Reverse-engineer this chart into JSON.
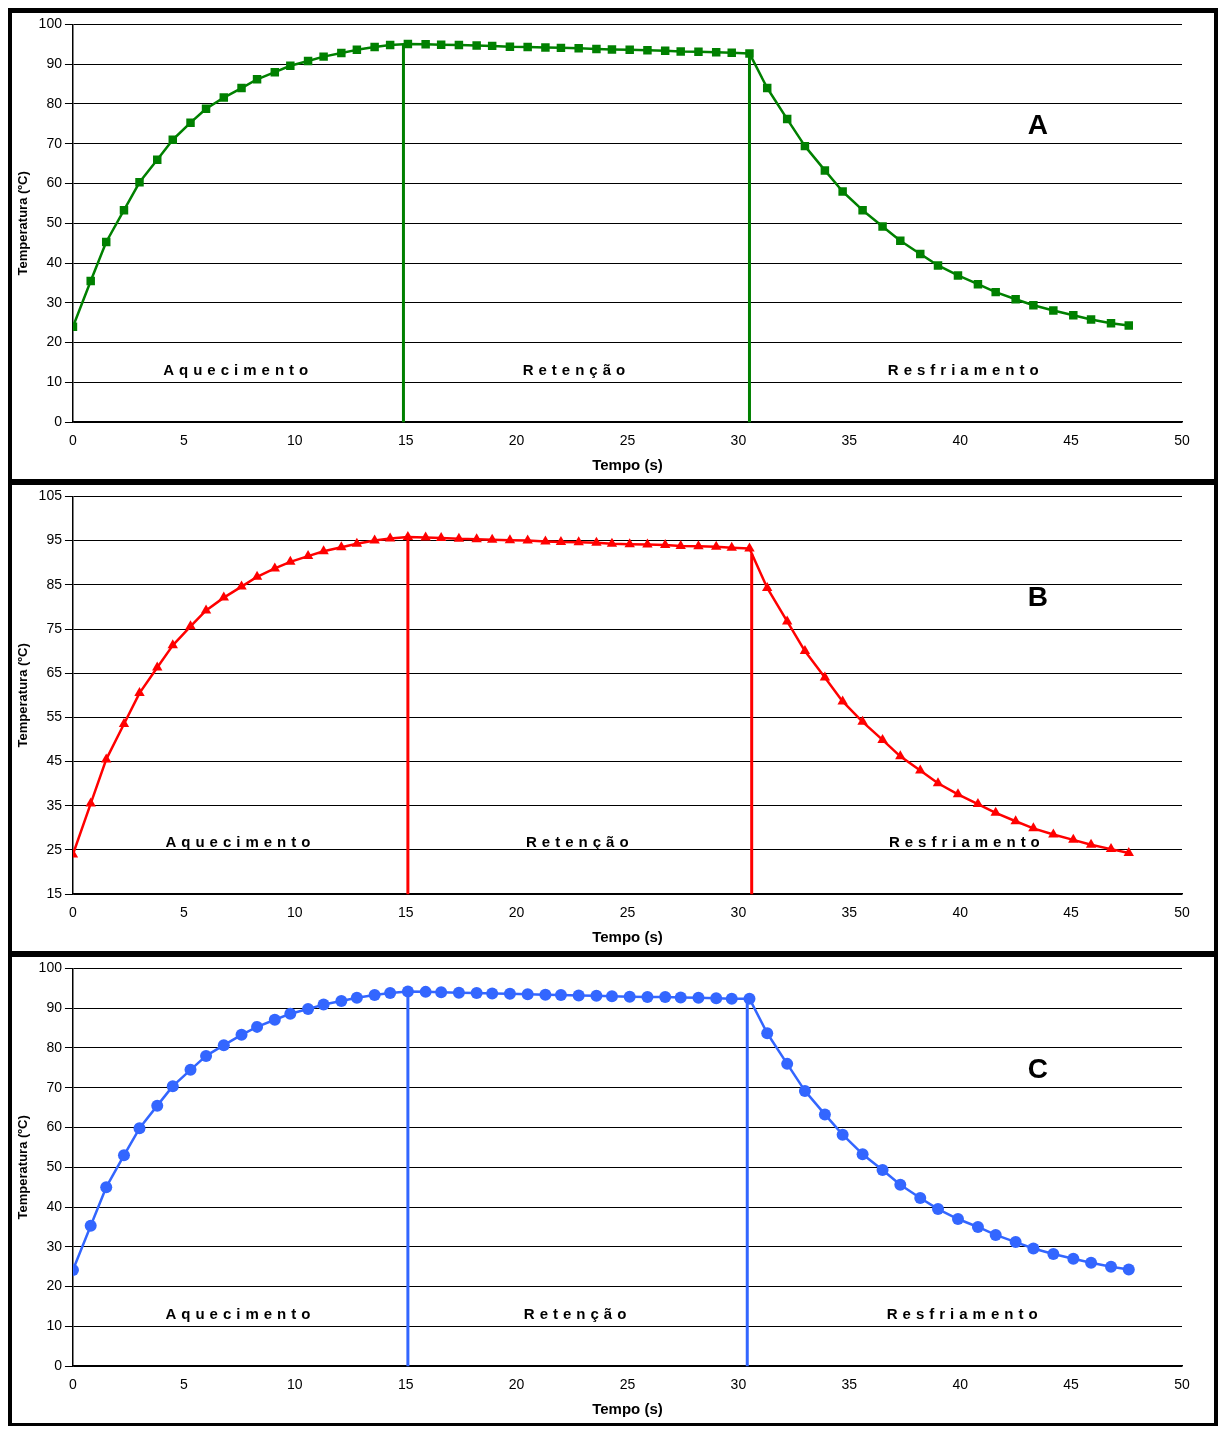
{
  "chart_data": [
    {
      "type": "line",
      "xlabel": "Tempo (s)",
      "ylabel": "Temperatura (ºC)",
      "xlim": [
        0,
        50
      ],
      "xticks": [
        0,
        5,
        10,
        15,
        20,
        25,
        30,
        35,
        40,
        45,
        50
      ],
      "ylim": [
        0,
        100
      ],
      "yticks": [
        0,
        10,
        20,
        30,
        40,
        50,
        60,
        70,
        80,
        90,
        100
      ],
      "grid": "y",
      "marker": "square",
      "line_style": "solid",
      "x": [
        0,
        0.8,
        1.5,
        2.3,
        3.0,
        3.8,
        4.5,
        5.3,
        6.0,
        6.8,
        7.6,
        8.3,
        9.1,
        9.8,
        10.6,
        11.3,
        12.1,
        12.8,
        13.6,
        14.3,
        15.1,
        15.9,
        16.6,
        17.4,
        18.2,
        18.9,
        19.7,
        20.5,
        21.3,
        22.0,
        22.8,
        23.6,
        24.3,
        25.1,
        25.9,
        26.7,
        27.4,
        28.2,
        29.0,
        29.7,
        30.5,
        31.3,
        32.2,
        33.0,
        33.9,
        34.7,
        35.6,
        36.5,
        37.3,
        38.2,
        39.0,
        39.9,
        40.8,
        41.6,
        42.5,
        43.3,
        44.2,
        45.1,
        45.9,
        46.8,
        47.6
      ],
      "series": [
        {
          "color": "#008000",
          "values": [
            24,
            35.5,
            45.3,
            53.3,
            60.3,
            66,
            71,
            75.3,
            78.8,
            81.6,
            84,
            86.2,
            88,
            89.6,
            90.8,
            91.9,
            92.8,
            93.6,
            94.3,
            94.8,
            95.1,
            95.0,
            94.9,
            94.8,
            94.7,
            94.6,
            94.4,
            94.3,
            94.2,
            94.1,
            94.0,
            93.8,
            93.7,
            93.6,
            93.5,
            93.4,
            93.2,
            93.1,
            93.0,
            92.9,
            92.7,
            84,
            76.2,
            69.4,
            63.3,
            58,
            53.3,
            49.2,
            45.6,
            42.3,
            39.4,
            36.9,
            34.7,
            32.7,
            30.9,
            29.4,
            28.1,
            26.9,
            25.8,
            24.9,
            24.3
          ]
        }
      ],
      "ref_lines": [
        {
          "axis": "x",
          "value": 14.9,
          "color": "#008000"
        },
        {
          "axis": "x",
          "value": 30.5,
          "color": "#008000"
        }
      ],
      "annotations": [
        "Aquecimento",
        "Retenção",
        "Resfriamento",
        "A"
      ]
    },
    {
      "type": "line",
      "xlabel": "Tempo (s)",
      "ylabel": "Temperatura (ºC)",
      "xlim": [
        0,
        50
      ],
      "xticks": [
        0,
        5,
        10,
        15,
        20,
        25,
        30,
        35,
        40,
        45,
        50
      ],
      "ylim": [
        15,
        105
      ],
      "yticks": [
        15,
        25,
        35,
        45,
        55,
        65,
        75,
        85,
        95,
        105
      ],
      "grid": "y",
      "marker": "triangle",
      "line_style": "solid",
      "x": [
        0,
        0.8,
        1.5,
        2.3,
        3.0,
        3.8,
        4.5,
        5.3,
        6.0,
        6.8,
        7.6,
        8.3,
        9.1,
        9.8,
        10.6,
        11.3,
        12.1,
        12.8,
        13.6,
        14.3,
        15.1,
        15.9,
        16.6,
        17.4,
        18.2,
        18.9,
        19.7,
        20.5,
        21.3,
        22.0,
        22.8,
        23.6,
        24.3,
        25.1,
        25.9,
        26.7,
        27.4,
        28.2,
        29.0,
        29.7,
        30.5,
        31.3,
        32.2,
        33.0,
        33.9,
        34.7,
        35.6,
        36.5,
        37.3,
        38.2,
        39.0,
        39.9,
        40.8,
        41.6,
        42.5,
        43.3,
        44.2,
        45.1,
        45.9,
        46.8,
        47.6
      ],
      "series": [
        {
          "color": "#ff0000",
          "values": [
            24,
            35.5,
            45.5,
            53.5,
            60.5,
            66.3,
            71.3,
            75.6,
            79.2,
            82.1,
            84.6,
            86.8,
            88.7,
            90.2,
            91.5,
            92.6,
            93.5,
            94.3,
            95,
            95.5,
            95.8,
            95.7,
            95.6,
            95.4,
            95.3,
            95.2,
            95.1,
            95.0,
            94.8,
            94.7,
            94.6,
            94.5,
            94.3,
            94.2,
            94.1,
            94.0,
            93.8,
            93.7,
            93.6,
            93.4,
            93.2,
            84.3,
            76.7,
            70,
            64,
            58.6,
            54,
            49.9,
            46.2,
            43,
            40.1,
            37.6,
            35.4,
            33.4,
            31.5,
            29.9,
            28.5,
            27.3,
            26.2,
            25.2,
            24.3
          ]
        }
      ],
      "ref_lines": [
        {
          "axis": "x",
          "value": 15.1,
          "color": "#ff0000"
        },
        {
          "axis": "x",
          "value": 30.6,
          "color": "#ff0000"
        }
      ],
      "annotations": [
        "Aquecimento",
        "Retenção",
        "Resfriamento",
        "B"
      ]
    },
    {
      "type": "line",
      "xlabel": "Tempo (s)",
      "ylabel": "Temperatura (ºC)",
      "xlim": [
        0,
        50
      ],
      "xticks": [
        0,
        5,
        10,
        15,
        20,
        25,
        30,
        35,
        40,
        45,
        50
      ],
      "ylim": [
        0,
        100
      ],
      "yticks": [
        0,
        10,
        20,
        30,
        40,
        50,
        60,
        70,
        80,
        90,
        100
      ],
      "grid": "y",
      "marker": "circle",
      "line_style": "solid",
      "x": [
        0,
        0.8,
        1.5,
        2.3,
        3.0,
        3.8,
        4.5,
        5.3,
        6.0,
        6.8,
        7.6,
        8.3,
        9.1,
        9.8,
        10.6,
        11.3,
        12.1,
        12.8,
        13.6,
        14.3,
        15.1,
        15.9,
        16.6,
        17.4,
        18.2,
        18.9,
        19.7,
        20.5,
        21.3,
        22.0,
        22.8,
        23.6,
        24.3,
        25.1,
        25.9,
        26.7,
        27.4,
        28.2,
        29.0,
        29.7,
        30.5,
        31.3,
        32.2,
        33.0,
        33.9,
        34.7,
        35.6,
        36.5,
        37.3,
        38.2,
        39.0,
        39.9,
        40.8,
        41.6,
        42.5,
        43.3,
        44.2,
        45.1,
        45.9,
        46.8,
        47.6
      ],
      "series": [
        {
          "color": "#3366ff",
          "values": [
            24.2,
            35.3,
            45,
            53,
            59.8,
            65.5,
            70.4,
            74.5,
            78,
            80.7,
            83.3,
            85.3,
            87.1,
            88.6,
            89.8,
            90.9,
            91.8,
            92.6,
            93.3,
            93.8,
            94.2,
            94.1,
            94.0,
            93.9,
            93.8,
            93.7,
            93.6,
            93.5,
            93.4,
            93.3,
            93.2,
            93.1,
            93.0,
            92.9,
            92.8,
            92.8,
            92.7,
            92.6,
            92.5,
            92.4,
            92.4,
            83.7,
            76,
            69.2,
            63.3,
            58.2,
            53.3,
            49.3,
            45.6,
            42.3,
            39.5,
            37,
            35,
            33,
            31.2,
            29.6,
            28.2,
            27,
            26,
            25,
            24.3
          ]
        }
      ],
      "ref_lines": [
        {
          "axis": "x",
          "value": 15.1,
          "color": "#3366ff"
        },
        {
          "axis": "x",
          "value": 30.4,
          "color": "#3366ff"
        }
      ],
      "annotations": [
        "Aquecimento",
        "Retenção",
        "Resfriamento",
        "C"
      ]
    }
  ]
}
